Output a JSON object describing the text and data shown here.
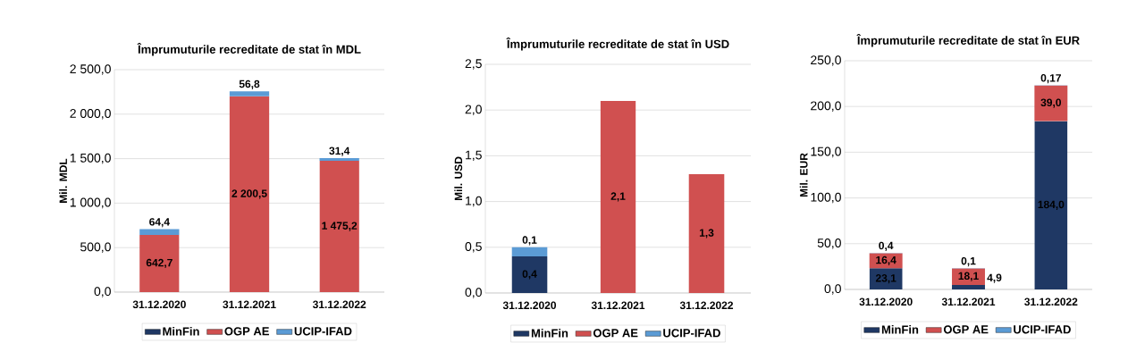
{
  "chart_data": [
    {
      "type": "bar",
      "stacked": true,
      "title": "Împrumuturile recreditate de stat în MDL",
      "ylabel": "Mil. MDL",
      "categories": [
        "31.12.2020",
        "31.12.2021",
        "31.12.2022"
      ],
      "ylim": [
        0,
        2500
      ],
      "yticks": [
        {
          "value": 0,
          "label": "0,0"
        },
        {
          "value": 500,
          "label": "500,0"
        },
        {
          "value": 1000,
          "label": "1 000,0"
        },
        {
          "value": 1500,
          "label": "1 500,0"
        },
        {
          "value": 2000,
          "label": "2 000,0"
        },
        {
          "value": 2500,
          "label": "2 500,0"
        }
      ],
      "grid": "y",
      "legend": "bottom",
      "series": [
        {
          "name": "MinFin",
          "color": "#1f3864",
          "values": [
            null,
            null,
            null
          ],
          "value_labels": [
            null,
            null,
            null
          ]
        },
        {
          "name": "OGP AE",
          "color": "#d05050",
          "values": [
            642.7,
            2200.5,
            1475.2
          ],
          "value_labels": [
            "642,7",
            "2 200,5",
            "1 475,2"
          ]
        },
        {
          "name": "UCIP-IFAD",
          "color": "#5b9bd5",
          "values": [
            64.4,
            56.8,
            31.4
          ],
          "value_labels": [
            "64,4",
            "56,8",
            "31,4"
          ]
        }
      ]
    },
    {
      "type": "bar",
      "stacked": true,
      "title": "Împrumuturile recreditate de stat în USD",
      "ylabel": "Mil. USD",
      "categories": [
        "31.12.2020",
        "31.12.2021",
        "31.12.2022"
      ],
      "ylim": [
        0,
        2.5
      ],
      "yticks": [
        {
          "value": 0,
          "label": "0,0"
        },
        {
          "value": 0.5,
          "label": "0,5"
        },
        {
          "value": 1,
          "label": "1,0"
        },
        {
          "value": 1.5,
          "label": "1,5"
        },
        {
          "value": 2,
          "label": "2,0"
        },
        {
          "value": 2.5,
          "label": "2,5"
        }
      ],
      "grid": "y",
      "legend": "bottom",
      "series": [
        {
          "name": "MinFin",
          "color": "#1f3864",
          "values": [
            0.4,
            null,
            null
          ],
          "value_labels": [
            "0,4",
            null,
            null
          ]
        },
        {
          "name": "OGP AE",
          "color": "#d05050",
          "values": [
            null,
            2.1,
            1.3
          ],
          "value_labels": [
            null,
            "2,1",
            "1,3"
          ]
        },
        {
          "name": "UCIP-IFAD",
          "color": "#5b9bd5",
          "values": [
            0.1,
            null,
            null
          ],
          "value_labels": [
            "0,1",
            null,
            null
          ]
        }
      ]
    },
    {
      "type": "bar",
      "stacked": true,
      "title": "Împrumuturile recreditate de stat în EUR",
      "ylabel": "Mil. EUR",
      "categories": [
        "31.12.2020",
        "31.12.2021",
        "31.12.2022"
      ],
      "ylim": [
        0,
        250
      ],
      "yticks": [
        {
          "value": 0,
          "label": "0,0"
        },
        {
          "value": 50,
          "label": "50,0"
        },
        {
          "value": 100,
          "label": "100,0"
        },
        {
          "value": 150,
          "label": "150,0"
        },
        {
          "value": 200,
          "label": "200,0"
        },
        {
          "value": 250,
          "label": "250,0"
        }
      ],
      "grid": "y",
      "legend": "bottom",
      "series": [
        {
          "name": "MinFin",
          "color": "#1f3864",
          "values": [
            23.1,
            4.9,
            184.0
          ],
          "value_labels": [
            "23,1",
            "4,9",
            "184,0"
          ]
        },
        {
          "name": "OGP AE",
          "color": "#d05050",
          "values": [
            16.4,
            18.1,
            39.0
          ],
          "value_labels": [
            "16,4",
            "18,1",
            "39,0"
          ]
        },
        {
          "name": "UCIP-IFAD",
          "color": "#5b9bd5",
          "values": [
            0.4,
            0.1,
            0.17
          ],
          "value_labels": [
            "0,4",
            "0,1",
            "0,17"
          ]
        }
      ]
    }
  ]
}
